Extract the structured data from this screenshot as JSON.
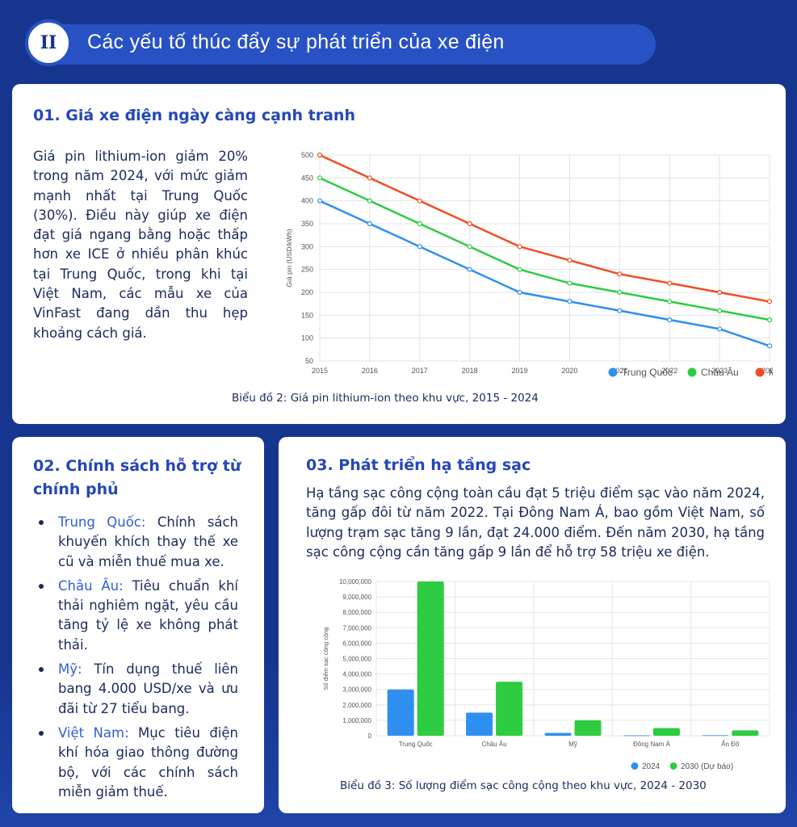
{
  "header": {
    "badge": "II",
    "title": "Các yếu tố thúc đẩy sự phát triển của xe điện"
  },
  "section1": {
    "title": "01. Giá xe điện ngày càng cạnh tranh",
    "text": "Giá pin lithium-ion giảm 20% trong năm 2024, với mức giảm mạnh nhất tại Trung Quốc (30%). Điều này giúp xe điện đạt giá ngang bằng hoặc thấp hơn xe ICE ở nhiều phân khúc tại Trung Quốc, trong khi tại Việt Nam, các mẫu xe của VinFast đang dần thu hẹp khoảng cách giá.",
    "caption": "Biểu đồ 2: Giá pin lithium-ion theo khu vực, 2015 - 2024"
  },
  "section2": {
    "title": "02. Chính sách hỗ trợ từ chính phủ",
    "items": [
      {
        "label": "Trung Quốc:",
        "text": " Chính sách khuyến khích thay thế xe cũ và miễn thuế mua xe."
      },
      {
        "label": "Châu Âu:",
        "text": " Tiêu chuẩn khí thải nghiêm ngặt, yêu cầu tăng tỷ lệ xe không phát thải."
      },
      {
        "label": "Mỹ:",
        "text": " Tín dụng thuế liên bang 4.000 USD/xe và ưu đãi từ 27 tiểu bang."
      },
      {
        "label": "Việt Nam:",
        "text": " Mục tiêu điện khí hóa giao thông đường bộ, với các chính sách miễn giảm thuế."
      }
    ]
  },
  "section3": {
    "title": "03. Phát triển hạ tầng sạc",
    "text": "Hạ tầng sạc công cộng toàn cầu đạt 5 triệu điểm sạc vào năm 2024, tăng gấp đôi từ năm 2022. Tại Đông Nam Á, bao gồm Việt Nam, số lượng trạm sạc tăng 9 lần, đạt 24.000 điểm. Đến năm 2030, hạ tầng sạc công cộng cần tăng gấp 9 lần để hỗ trợ 58 triệu xe điện.",
    "caption": "Biểu đồ 3: Số lượng điểm sạc công cộng theo khu vực, 2024 - 2030"
  },
  "chart_data": [
    {
      "type": "line",
      "title": "",
      "xlabel": "",
      "ylabel": "Giá pin (USD/kWh)",
      "x": [
        "2015",
        "2016",
        "2017",
        "2018",
        "2019",
        "2020",
        "2021",
        "2022",
        "2023",
        "2024"
      ],
      "ylim": [
        50,
        500
      ],
      "yticks": [
        "50",
        "100",
        "150",
        "200",
        "250",
        "300",
        "350",
        "400",
        "450",
        "500"
      ],
      "grid": true,
      "legend": "bottom-right",
      "series": [
        {
          "name": "Trung Quốc",
          "color": "#2f8ff0",
          "values": [
            400,
            350,
            300,
            250,
            200,
            180,
            160,
            140,
            120,
            83
          ]
        },
        {
          "name": "Châu Âu",
          "color": "#2ecc40",
          "values": [
            450,
            400,
            350,
            300,
            250,
            220,
            200,
            180,
            160,
            140
          ]
        },
        {
          "name": "Mỹ",
          "color": "#f04e23",
          "values": [
            500,
            450,
            400,
            350,
            300,
            270,
            240,
            220,
            200,
            180
          ]
        }
      ]
    },
    {
      "type": "bar",
      "title": "",
      "xlabel": "",
      "ylabel": "Số điểm sạc công cộng",
      "categories": [
        "Trung Quốc",
        "Châu Âu",
        "Mỹ",
        "Đông Nam Á",
        "Ấn Độ"
      ],
      "ylim": [
        0,
        10000000
      ],
      "yticks": [
        "0",
        "1,000,000",
        "2,000,000",
        "3,000,000",
        "4,000,000",
        "5,000,000",
        "6,000,000",
        "7,000,000",
        "8,000,000",
        "9,000,000",
        "10,000,000"
      ],
      "grid": true,
      "legend": "bottom-right",
      "series": [
        {
          "name": "2024",
          "color": "#2f8ff0",
          "values": [
            3000000,
            1500000,
            180000,
            24000,
            30000
          ]
        },
        {
          "name": "2030 (Dự báo)",
          "color": "#2ecc40",
          "values": [
            10000000,
            3500000,
            1000000,
            500000,
            350000
          ]
        }
      ]
    }
  ]
}
